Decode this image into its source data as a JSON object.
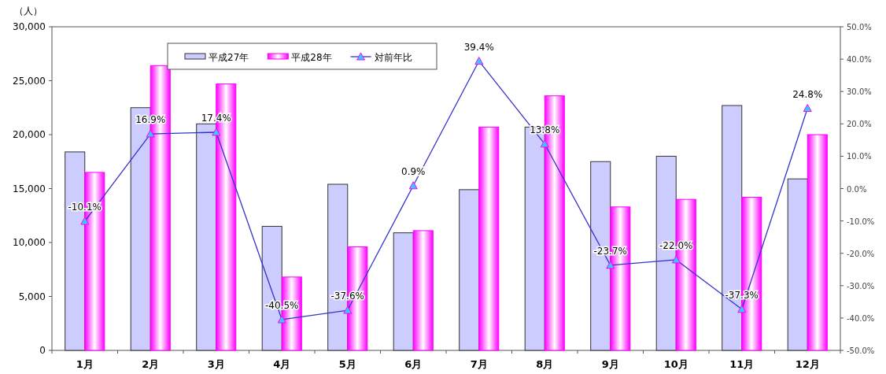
{
  "chart_data": {
    "type": "bar",
    "ylabel": "（人）",
    "categories": [
      "1月",
      "2月",
      "3月",
      "4月",
      "5月",
      "6月",
      "7月",
      "8月",
      "9月",
      "10月",
      "11月",
      "12月"
    ],
    "series": [
      {
        "name": "平成27年",
        "color": "#ccccff",
        "values": [
          18400,
          22500,
          21000,
          11500,
          15400,
          10900,
          14900,
          20700,
          17500,
          18000,
          22700,
          15900
        ]
      },
      {
        "name": "平成28年",
        "color": "#ff00ff",
        "values": [
          16500,
          26400,
          24700,
          6800,
          9600,
          11100,
          20700,
          23600,
          13300,
          14000,
          14200,
          20000
        ]
      },
      {
        "name": "対前年比",
        "type": "line",
        "axis": "y2",
        "color": "#3333cc",
        "marker": "triangle",
        "values": [
          -10.1,
          16.9,
          17.4,
          -40.5,
          -37.6,
          0.9,
          39.4,
          13.8,
          -23.7,
          -22.0,
          -37.3,
          24.8
        ],
        "value_labels": [
          "-10.1%",
          "16.9%",
          "17.4%",
          "-40.5%",
          "-37.6%",
          "0.9%",
          "39.4%",
          "13.8%",
          "-23.7%",
          "-22.0%",
          "-37.3%",
          "24.8%"
        ]
      }
    ],
    "ylim": [
      0,
      30000
    ],
    "yticks": [
      {
        "value": 0,
        "label": "0"
      },
      {
        "value": 5000,
        "label": "5,000"
      },
      {
        "value": 10000,
        "label": "10,000"
      },
      {
        "value": 15000,
        "label": "15,000"
      },
      {
        "value": 20000,
        "label": "20,000"
      },
      {
        "value": 25000,
        "label": "25,000"
      },
      {
        "value": 30000,
        "label": "30,000"
      }
    ],
    "y2lim": [
      -50,
      50
    ],
    "y2ticks": [
      {
        "value": -50,
        "label": "-50.0%"
      },
      {
        "value": -40,
        "label": "-40.0%"
      },
      {
        "value": -30,
        "label": "-30.0%"
      },
      {
        "value": -20,
        "label": "-20.0%"
      },
      {
        "value": -10,
        "label": "-10.0%"
      },
      {
        "value": 0,
        "label": "0.0%"
      },
      {
        "value": 10,
        "label": "10.0%"
      },
      {
        "value": 20,
        "label": "20.0%"
      },
      {
        "value": 30,
        "label": "30.0%"
      },
      {
        "value": 40,
        "label": "40.0%"
      },
      {
        "value": 50,
        "label": "50.0%"
      }
    ],
    "grid": false,
    "legend": "top"
  }
}
